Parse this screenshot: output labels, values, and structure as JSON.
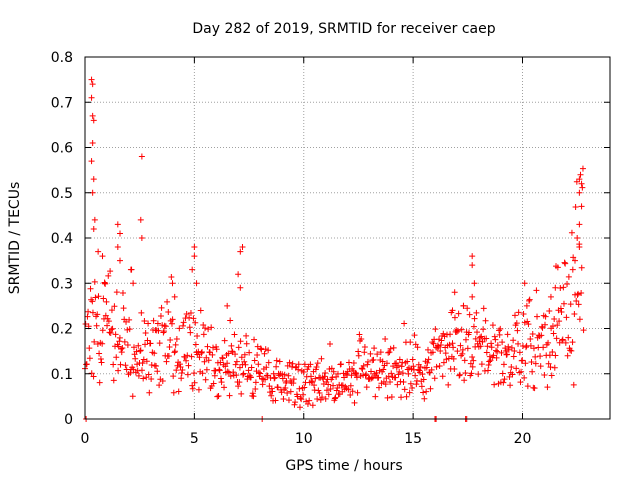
{
  "chart_data": {
    "type": "scatter",
    "title": "Day 282 of 2019, SRMTID for receiver caep",
    "xlabel": "GPS time / hours",
    "ylabel": "SRMTID / TECUs",
    "xlim": [
      0,
      24
    ],
    "ylim": [
      0,
      0.8
    ],
    "grid": true,
    "marker": "+",
    "color": "#ff0000",
    "xticks": [
      {
        "value": 0,
        "label": "0"
      },
      {
        "value": 5,
        "label": "5"
      },
      {
        "value": 10,
        "label": "10"
      },
      {
        "value": 15,
        "label": "15"
      },
      {
        "value": 20,
        "label": "20"
      }
    ],
    "yticks": [
      {
        "value": 0,
        "label": "0"
      },
      {
        "value": 0.1,
        "label": "0.1"
      },
      {
        "value": 0.2,
        "label": "0.2"
      },
      {
        "value": 0.3,
        "label": "0.3"
      },
      {
        "value": 0.4,
        "label": "0.4"
      },
      {
        "value": 0.5,
        "label": "0.5"
      },
      {
        "value": 0.6,
        "label": "0.6"
      },
      {
        "value": 0.7,
        "label": "0.7"
      },
      {
        "value": 0.8,
        "label": "0.8"
      }
    ],
    "baseline_profile": [
      {
        "x": 0.0,
        "y": 0.15
      },
      {
        "x": 0.5,
        "y": 0.2
      },
      {
        "x": 1.0,
        "y": 0.2
      },
      {
        "x": 2.0,
        "y": 0.16
      },
      {
        "x": 3.0,
        "y": 0.14
      },
      {
        "x": 4.0,
        "y": 0.16
      },
      {
        "x": 5.0,
        "y": 0.14
      },
      {
        "x": 6.0,
        "y": 0.12
      },
      {
        "x": 7.0,
        "y": 0.12
      },
      {
        "x": 8.0,
        "y": 0.1
      },
      {
        "x": 9.0,
        "y": 0.09
      },
      {
        "x": 10.0,
        "y": 0.08
      },
      {
        "x": 11.0,
        "y": 0.08
      },
      {
        "x": 12.0,
        "y": 0.09
      },
      {
        "x": 13.0,
        "y": 0.1
      },
      {
        "x": 14.0,
        "y": 0.11
      },
      {
        "x": 15.0,
        "y": 0.11
      },
      {
        "x": 16.0,
        "y": 0.13
      },
      {
        "x": 17.0,
        "y": 0.16
      },
      {
        "x": 18.0,
        "y": 0.15
      },
      {
        "x": 19.0,
        "y": 0.13
      },
      {
        "x": 20.0,
        "y": 0.15
      },
      {
        "x": 21.0,
        "y": 0.18
      },
      {
        "x": 22.0,
        "y": 0.22
      },
      {
        "x": 22.5,
        "y": 0.3
      },
      {
        "x": 22.8,
        "y": 0.35
      }
    ],
    "points": [
      {
        "x": 0.3,
        "y": 0.75
      },
      {
        "x": 0.35,
        "y": 0.74
      },
      {
        "x": 0.3,
        "y": 0.71
      },
      {
        "x": 0.35,
        "y": 0.67
      },
      {
        "x": 0.4,
        "y": 0.66
      },
      {
        "x": 0.35,
        "y": 0.61
      },
      {
        "x": 0.3,
        "y": 0.57
      },
      {
        "x": 0.4,
        "y": 0.53
      },
      {
        "x": 0.35,
        "y": 0.5
      },
      {
        "x": 0.45,
        "y": 0.44
      },
      {
        "x": 0.4,
        "y": 0.42
      },
      {
        "x": 0.6,
        "y": 0.37
      },
      {
        "x": 0.8,
        "y": 0.36
      },
      {
        "x": 0.9,
        "y": 0.3
      },
      {
        "x": 1.5,
        "y": 0.43
      },
      {
        "x": 1.6,
        "y": 0.41
      },
      {
        "x": 1.5,
        "y": 0.38
      },
      {
        "x": 1.6,
        "y": 0.35
      },
      {
        "x": 2.6,
        "y": 0.58
      },
      {
        "x": 2.55,
        "y": 0.44
      },
      {
        "x": 2.6,
        "y": 0.4
      },
      {
        "x": 2.1,
        "y": 0.33
      },
      {
        "x": 2.2,
        "y": 0.3
      },
      {
        "x": 4.0,
        "y": 0.3
      },
      {
        "x": 4.1,
        "y": 0.27
      },
      {
        "x": 5.0,
        "y": 0.38
      },
      {
        "x": 5.0,
        "y": 0.36
      },
      {
        "x": 4.9,
        "y": 0.33
      },
      {
        "x": 5.1,
        "y": 0.3
      },
      {
        "x": 7.2,
        "y": 0.38
      },
      {
        "x": 7.1,
        "y": 0.37
      },
      {
        "x": 7.0,
        "y": 0.32
      },
      {
        "x": 7.1,
        "y": 0.29
      },
      {
        "x": 6.5,
        "y": 0.25
      },
      {
        "x": 22.6,
        "y": 0.53
      },
      {
        "x": 22.7,
        "y": 0.52
      },
      {
        "x": 22.6,
        "y": 0.5
      },
      {
        "x": 22.7,
        "y": 0.47
      },
      {
        "x": 22.6,
        "y": 0.43
      },
      {
        "x": 22.5,
        "y": 0.4
      },
      {
        "x": 22.6,
        "y": 0.38
      },
      {
        "x": 22.4,
        "y": 0.35
      },
      {
        "x": 22.3,
        "y": 0.33
      },
      {
        "x": 17.7,
        "y": 0.36
      },
      {
        "x": 17.7,
        "y": 0.34
      },
      {
        "x": 17.8,
        "y": 0.3
      },
      {
        "x": 17.7,
        "y": 0.27
      },
      {
        "x": 17.3,
        "y": 0.25
      },
      {
        "x": 16.9,
        "y": 0.28
      },
      {
        "x": 16.8,
        "y": 0.24
      },
      {
        "x": 20.1,
        "y": 0.3
      },
      {
        "x": 20.2,
        "y": 0.25
      },
      {
        "x": 21.3,
        "y": 0.27
      },
      {
        "x": 21.5,
        "y": 0.29
      },
      {
        "x": 0.05,
        "y": 0.0
      },
      {
        "x": 8.1,
        "y": 0.0
      },
      {
        "x": 16.0,
        "y": 0.0
      },
      {
        "x": 16.05,
        "y": 0.0
      },
      {
        "x": 17.4,
        "y": 0.0
      },
      {
        "x": 17.45,
        "y": 0.0
      }
    ]
  }
}
